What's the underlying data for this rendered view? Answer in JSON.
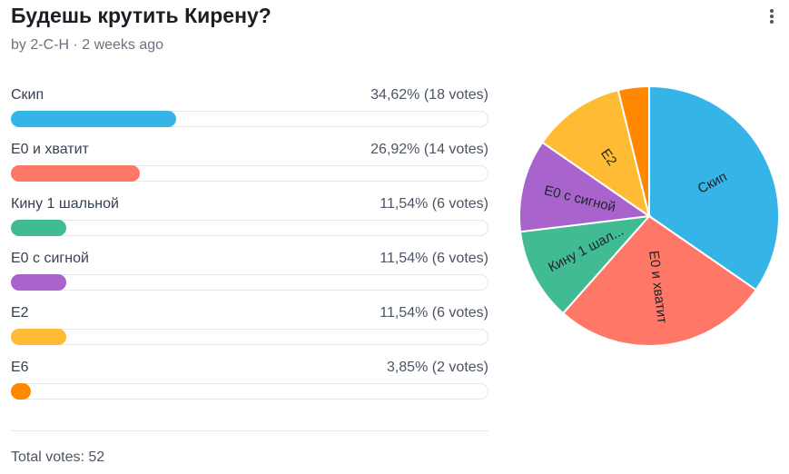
{
  "poll": {
    "title": "Будешь крутить Кирену?",
    "meta": "by 2-C-H · 2 weeks ago",
    "total": "Total votes: 52"
  },
  "menu": {
    "icon": "more-vertical-icon"
  },
  "options": [
    {
      "label": "Скип",
      "stat": "34,62% (18 votes)",
      "color": "#35b4e8"
    },
    {
      "label": "Е0 и хватит",
      "stat": "26,92% (14 votes)",
      "color": "#ff7766"
    },
    {
      "label": "Кину 1 шальной",
      "stat": "11,54% (6 votes)",
      "color": "#41bb94"
    },
    {
      "label": "Е0 с сигной",
      "stat": "11,54% (6 votes)",
      "color": "#a963cc"
    },
    {
      "label": "Е2",
      "stat": "11,54% (6 votes)",
      "color": "#ffbb33"
    },
    {
      "label": "Е6",
      "stat": "3,85% (2 votes)",
      "color": "#ff8800"
    }
  ],
  "chart_data": {
    "type": "pie",
    "categories": [
      "Скип",
      "Е0 и хватит",
      "Кину 1 шальной",
      "Е0 с сигной",
      "Е2",
      "Е6"
    ],
    "values": [
      18,
      14,
      6,
      6,
      6,
      2
    ],
    "percentages": [
      34.62,
      26.92,
      11.54,
      11.54,
      11.54,
      3.85
    ],
    "slice_labels": [
      "Скип",
      "Е0 и хватит",
      "Кину 1 шал...",
      "Е0 с сигной",
      "Е2",
      ""
    ],
    "colors": [
      "#35b4e8",
      "#ff7766",
      "#41bb94",
      "#a963cc",
      "#ffbb33",
      "#ff8800"
    ]
  }
}
